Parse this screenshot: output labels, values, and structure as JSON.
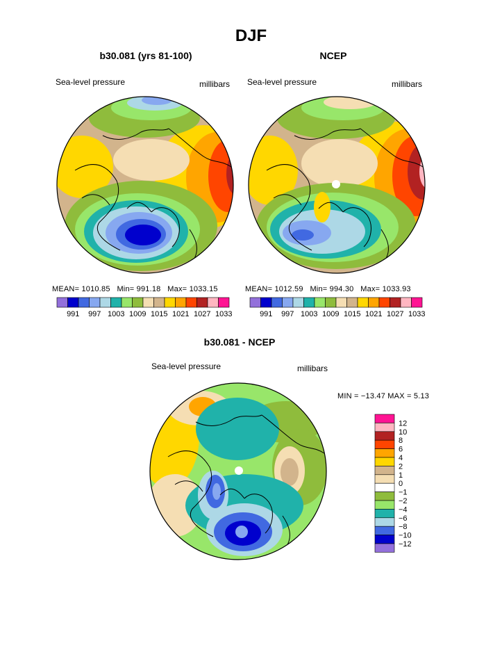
{
  "page": {
    "title": "DJF"
  },
  "chart_data": [
    {
      "type": "heatmap",
      "projection": "north-polar-stereographic",
      "title": "b30.081 (yrs 81-100)",
      "left_label": "Sea-level pressure",
      "right_label": "millibars",
      "stats": {
        "mean_label": "MEAN=",
        "mean": "1010.85",
        "min_label": "Min=",
        "min": "991.18",
        "max_label": "Max=",
        "max": "1033.15"
      },
      "colorbar": {
        "orientation": "horizontal",
        "levels": [
          "991",
          "997",
          "1003",
          "1009",
          "1015",
          "1021",
          "1027",
          "1033"
        ],
        "colors": [
          "#9370db",
          "#0000cd",
          "#4169e1",
          "#87a8f0",
          "#add8e6",
          "#20b2aa",
          "#98e66a",
          "#8fbc3c",
          "#f5deb3",
          "#d2b48c",
          "#ffd700",
          "#ffa500",
          "#ff4500",
          "#b22222",
          "#ffb6c1",
          "#ff1493"
        ]
      }
    },
    {
      "type": "heatmap",
      "projection": "north-polar-stereographic",
      "title": "NCEP",
      "left_label": "Sea-level pressure",
      "right_label": "millibars",
      "stats": {
        "mean_label": "MEAN=",
        "mean": "1012.59",
        "min_label": "Min=",
        "min": "994.30",
        "max_label": "Max=",
        "max": "1033.93"
      },
      "colorbar": {
        "orientation": "horizontal",
        "levels": [
          "991",
          "997",
          "1003",
          "1009",
          "1015",
          "1021",
          "1027",
          "1033"
        ],
        "colors": [
          "#9370db",
          "#0000cd",
          "#4169e1",
          "#87a8f0",
          "#add8e6",
          "#20b2aa",
          "#98e66a",
          "#8fbc3c",
          "#f5deb3",
          "#d2b48c",
          "#ffd700",
          "#ffa500",
          "#ff4500",
          "#b22222",
          "#ffb6c1",
          "#ff1493"
        ]
      }
    },
    {
      "type": "heatmap",
      "projection": "north-polar-stereographic",
      "title": "b30.081 - NCEP",
      "left_label": "Sea-level pressure",
      "right_label": "millibars",
      "stats_text": "MIN = −13.47 MAX =    5.13",
      "colorbar": {
        "orientation": "vertical",
        "levels": [
          "12",
          "10",
          "8",
          "6",
          "4",
          "2",
          "1",
          "0",
          "−1",
          "−2",
          "−4",
          "−6",
          "−8",
          "−10",
          "−12"
        ],
        "colors": [
          "#ff1493",
          "#ffb6c1",
          "#b22222",
          "#ff4500",
          "#ffa500",
          "#ffd700",
          "#d2b48c",
          "#f5deb3",
          "#ffffff",
          "#8fbc3c",
          "#98e66a",
          "#20b2aa",
          "#add8e6",
          "#4169e1",
          "#0000cd",
          "#9370db"
        ]
      }
    }
  ]
}
